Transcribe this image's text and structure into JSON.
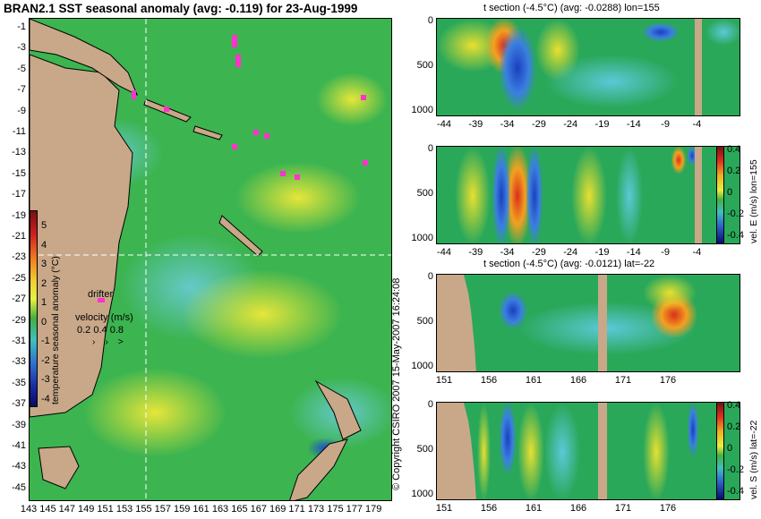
{
  "main_title": "BRAN2.1 SST seasonal anomaly (avg: -0.119) for 23-Aug-1999",
  "map": {
    "lat_ticks": [
      "-1",
      "-3",
      "-5",
      "-7",
      "-9",
      "-11",
      "-13",
      "-15",
      "-17",
      "-19",
      "-21",
      "-23",
      "-25",
      "-27",
      "-29",
      "-31",
      "-33",
      "-35",
      "-37",
      "-39",
      "-41",
      "-43",
      "-45"
    ],
    "lon_ticks": [
      "143",
      "145",
      "147",
      "149",
      "151",
      "153",
      "155",
      "157",
      "159",
      "161",
      "163",
      "165",
      "167",
      "169",
      "171",
      "173",
      "175",
      "177",
      "179"
    ],
    "colorbar_label": "temperature seasonal anomaly (°C)",
    "colorbar_ticks": [
      "5",
      "4",
      "3",
      "2",
      "1",
      "0",
      "-1",
      "-2",
      "-3",
      "-4"
    ],
    "drifter_label": "drifter",
    "velocity_label": "velocity (m/s)",
    "velocity_values": "0.2 0.4 0.8"
  },
  "panel1": {
    "title": "t section (-4.5°C) (avg: -0.0288) lon=155",
    "y_ticks": [
      "0",
      "500",
      "1000"
    ],
    "x_ticks": [
      "-44",
      "-39",
      "-34",
      "-29",
      "-24",
      "-19",
      "-14",
      "-9",
      "-4"
    ]
  },
  "panel2": {
    "y_ticks": [
      "0",
      "500",
      "1000"
    ],
    "x_ticks": [
      "-44",
      "-39",
      "-34",
      "-29",
      "-24",
      "-19",
      "-14",
      "-9",
      "-4"
    ],
    "cbar_label": "vel. E (m/s) lon=155",
    "cbar_ticks": [
      "0.4",
      "0.2",
      "0",
      "-0.2",
      "-0.4"
    ]
  },
  "panel3": {
    "title": "t section (-4.5°C) (avg: -0.0121) lat=-22",
    "y_ticks": [
      "0",
      "500",
      "1000"
    ],
    "x_ticks": [
      "151",
      "156",
      "161",
      "166",
      "171",
      "176"
    ]
  },
  "panel4": {
    "y_ticks": [
      "0",
      "500",
      "1000"
    ],
    "x_ticks": [
      "151",
      "156",
      "161",
      "166",
      "171",
      "176"
    ],
    "cbar_label": "vel. S (m/s) lat=-22",
    "cbar_ticks": [
      "0.4",
      "0.2",
      "0",
      "-0.2",
      "-0.4"
    ]
  },
  "copyright": "© Copyright CSIRO 2007 15-May-2007 16:24:08",
  "chart_data": [
    {
      "type": "heatmap",
      "title": "BRAN2.1 SST seasonal anomaly (avg: -0.119) for 23-Aug-1999",
      "xlim": [
        143,
        180
      ],
      "ylim": [
        -45,
        0
      ],
      "colorbar_range": [
        -4,
        5
      ],
      "colorbar_label": "temperature seasonal anomaly (°C)"
    },
    {
      "type": "heatmap",
      "title": "t section (-4.5°C) (avg: -0.0288) lon=155",
      "xlim": [
        -45,
        -1
      ],
      "ylim": [
        1000,
        0
      ]
    },
    {
      "type": "heatmap",
      "ylim": [
        1000,
        0
      ],
      "xlim": [
        -45,
        -1
      ],
      "colorbar_range": [
        -0.4,
        0.4
      ],
      "colorbar_label": "vel. E (m/s) lon=155"
    },
    {
      "type": "heatmap",
      "title": "t section (-4.5°C) (avg: -0.0121) lat=-22",
      "xlim": [
        150,
        180
      ],
      "ylim": [
        1000,
        0
      ]
    },
    {
      "type": "heatmap",
      "ylim": [
        1000,
        0
      ],
      "xlim": [
        150,
        180
      ],
      "colorbar_range": [
        -0.4,
        0.4
      ],
      "colorbar_label": "vel. S (m/s) lat=-22"
    }
  ]
}
